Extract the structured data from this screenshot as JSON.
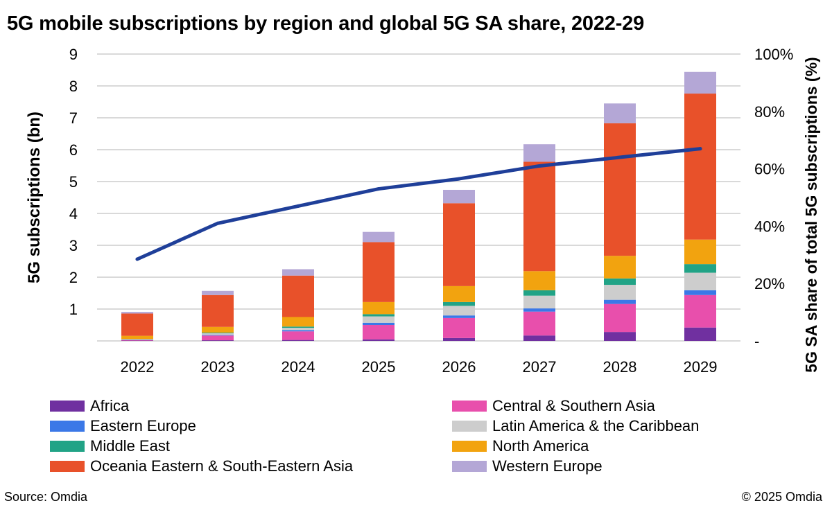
{
  "chart_data": {
    "type": "bar",
    "stacked": true,
    "title": "5G mobile subscriptions by region and global 5G SA share, 2022-29",
    "ylabel": "5G subscriptions (bn)",
    "y2label": "5G SA share of total 5G subscriptions (%)",
    "ylim": [
      0,
      9
    ],
    "y2lim": [
      0,
      100
    ],
    "yticks": [
      "1",
      "2",
      "3",
      "4",
      "5",
      "6",
      "7",
      "8",
      "9"
    ],
    "y2ticks": [
      "-",
      "20%",
      "40%",
      "60%",
      "80%",
      "100%"
    ],
    "grid": true,
    "legend_position": "bottom",
    "categories": [
      "2022",
      "2023",
      "2024",
      "2025",
      "2026",
      "2027",
      "2028",
      "2029"
    ],
    "series": [
      {
        "name": "Africa",
        "color": "#7030A0",
        "values": [
          0.01,
          0.02,
          0.03,
          0.05,
          0.09,
          0.17,
          0.28,
          0.42
        ]
      },
      {
        "name": "Central & Southern Asia",
        "color": "#E84FAC",
        "values": [
          0.02,
          0.15,
          0.27,
          0.45,
          0.63,
          0.75,
          0.88,
          1.02
        ]
      },
      {
        "name": "Eastern Europe",
        "color": "#3B78E7",
        "values": [
          0.005,
          0.02,
          0.04,
          0.07,
          0.08,
          0.1,
          0.13,
          0.15
        ]
      },
      {
        "name": "Latin America & the Caribbean",
        "color": "#CDCDCD",
        "values": [
          0.015,
          0.05,
          0.07,
          0.2,
          0.3,
          0.4,
          0.47,
          0.55
        ]
      },
      {
        "name": "Middle East",
        "color": "#21A386",
        "values": [
          0.01,
          0.02,
          0.04,
          0.07,
          0.12,
          0.17,
          0.2,
          0.27
        ]
      },
      {
        "name": "North America",
        "color": "#F2A30F",
        "values": [
          0.1,
          0.18,
          0.3,
          0.38,
          0.5,
          0.6,
          0.71,
          0.77
        ]
      },
      {
        "name": "Oceania Eastern & South-Eastern Asia",
        "color": "#E8512A",
        "values": [
          0.7,
          1.0,
          1.3,
          1.88,
          2.6,
          3.43,
          4.16,
          4.58
        ]
      },
      {
        "name": "Western Europe",
        "color": "#B4A7D6",
        "values": [
          0.05,
          0.13,
          0.2,
          0.32,
          0.42,
          0.55,
          0.62,
          0.68
        ]
      }
    ],
    "line_series": {
      "name": "5G SA share of total 5G subscriptions",
      "color": "#1F3F99",
      "axis": "right",
      "values": [
        28.5,
        41,
        47,
        53,
        56.5,
        61,
        64,
        67
      ]
    }
  },
  "legend_left": [
    "Africa",
    "Eastern Europe",
    "Middle East",
    "Oceania Eastern & South-Eastern Asia"
  ],
  "legend_right": [
    "Central & Southern Asia",
    "Latin America & the Caribbean",
    "North America",
    "Western Europe"
  ],
  "footer": {
    "source": "Source: Omdia",
    "copyright": "© 2025 Omdia"
  }
}
